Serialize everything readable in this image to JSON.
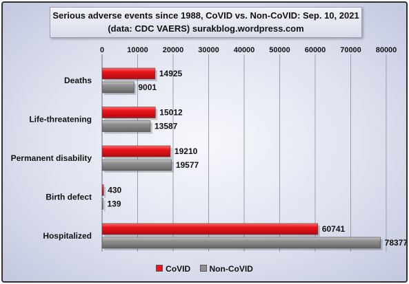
{
  "chart_data": {
    "type": "bar",
    "orientation": "horizontal",
    "title": "Serious adverse events since 1988, CoVID vs. Non-CoVID: Sep. 10, 2021",
    "subtitle": "(data: CDC VAERS) surakblog.wordpress.com",
    "categories": [
      "Deaths",
      "Life-threatening",
      "Permanent disability",
      "Birth defect",
      "Hospitalized"
    ],
    "series": [
      {
        "name": "CoVID",
        "values": [
          14925,
          15012,
          19210,
          430,
          60741
        ],
        "color": "#e8141b"
      },
      {
        "name": "Non-CoVID",
        "values": [
          9001,
          13587,
          19577,
          139,
          78377
        ],
        "color": "#8f8f8f"
      }
    ],
    "xlim": [
      0,
      80000
    ],
    "ticks": [
      0,
      10000,
      20000,
      30000,
      40000,
      50000,
      60000,
      70000,
      80000
    ],
    "tick_labels": [
      "0",
      "10000",
      "20000",
      "30000",
      "40000",
      "50000",
      "60000",
      "70000",
      "80000"
    ],
    "axis_position": "top",
    "grid": true,
    "legend_position": "bottom"
  }
}
